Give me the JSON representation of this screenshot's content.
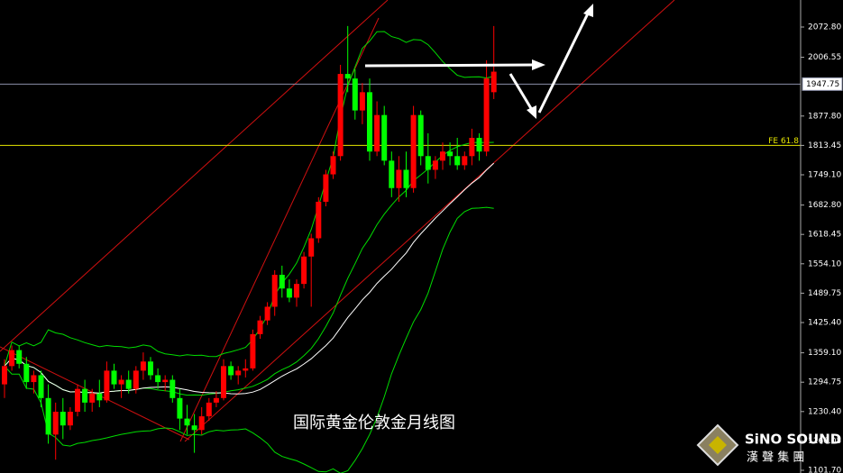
{
  "chart_data": {
    "type": "candlestick",
    "title": "国际黄金伦敦金月线图",
    "up_color": "#ff0000",
    "down_color": "#00ff00",
    "ylim": [
      1095.8,
      2132.0
    ],
    "yticks": [
      {
        "value": 2072.8,
        "label": "2072.80"
      },
      {
        "value": 2006.55,
        "label": "2006.55"
      },
      {
        "value": 1877.8,
        "label": "1877.80"
      },
      {
        "value": 1813.45,
        "label": "1813.45"
      },
      {
        "value": 1749.1,
        "label": "1749.10"
      },
      {
        "value": 1682.8,
        "label": "1682.80"
      },
      {
        "value": 1618.45,
        "label": "1618.45"
      },
      {
        "value": 1554.1,
        "label": "1554.10"
      },
      {
        "value": 1489.75,
        "label": "1489.75"
      },
      {
        "value": 1425.4,
        "label": "1425.40"
      },
      {
        "value": 1359.1,
        "label": "1359.10"
      },
      {
        "value": 1294.75,
        "label": "1294.75"
      },
      {
        "value": 1230.4,
        "label": "1230.40"
      },
      {
        "value": 1166.05,
        "label": "1166.05"
      },
      {
        "value": 1101.7,
        "label": "1101.70"
      }
    ],
    "hlines": [
      {
        "value": 1947.75,
        "label": "1947.75",
        "color": "#8a8fa8"
      },
      {
        "value": 1813.6,
        "label": "FE 61.8",
        "color": "#e6e600"
      }
    ],
    "candles": [
      {
        "open": 1290,
        "high": 1345,
        "low": 1260,
        "close": 1330
      },
      {
        "open": 1330,
        "high": 1375,
        "low": 1320,
        "close": 1365
      },
      {
        "open": 1365,
        "high": 1375,
        "low": 1325,
        "close": 1335
      },
      {
        "open": 1335,
        "high": 1350,
        "low": 1280,
        "close": 1295
      },
      {
        "open": 1295,
        "high": 1320,
        "low": 1270,
        "close": 1310
      },
      {
        "open": 1310,
        "high": 1320,
        "low": 1240,
        "close": 1260
      },
      {
        "open": 1260,
        "high": 1290,
        "low": 1160,
        "close": 1180
      },
      {
        "open": 1180,
        "high": 1250,
        "low": 1125,
        "close": 1230
      },
      {
        "open": 1230,
        "high": 1260,
        "low": 1170,
        "close": 1200
      },
      {
        "open": 1200,
        "high": 1240,
        "low": 1190,
        "close": 1230
      },
      {
        "open": 1230,
        "high": 1290,
        "low": 1220,
        "close": 1280
      },
      {
        "open": 1280,
        "high": 1300,
        "low": 1230,
        "close": 1250
      },
      {
        "open": 1250,
        "high": 1280,
        "low": 1230,
        "close": 1270
      },
      {
        "open": 1270,
        "high": 1300,
        "low": 1240,
        "close": 1255
      },
      {
        "open": 1255,
        "high": 1340,
        "low": 1250,
        "close": 1320
      },
      {
        "open": 1320,
        "high": 1335,
        "low": 1280,
        "close": 1290
      },
      {
        "open": 1290,
        "high": 1310,
        "low": 1260,
        "close": 1300
      },
      {
        "open": 1300,
        "high": 1320,
        "low": 1270,
        "close": 1280
      },
      {
        "open": 1280,
        "high": 1330,
        "low": 1270,
        "close": 1320
      },
      {
        "open": 1320,
        "high": 1360,
        "low": 1300,
        "close": 1340
      },
      {
        "open": 1340,
        "high": 1350,
        "low": 1300,
        "close": 1310
      },
      {
        "open": 1310,
        "high": 1325,
        "low": 1280,
        "close": 1295
      },
      {
        "open": 1295,
        "high": 1310,
        "low": 1275,
        "close": 1300
      },
      {
        "open": 1300,
        "high": 1310,
        "low": 1250,
        "close": 1260
      },
      {
        "open": 1260,
        "high": 1280,
        "low": 1190,
        "close": 1215
      },
      {
        "open": 1215,
        "high": 1245,
        "low": 1180,
        "close": 1200
      },
      {
        "open": 1200,
        "high": 1225,
        "low": 1140,
        "close": 1190
      },
      {
        "open": 1190,
        "high": 1240,
        "low": 1180,
        "close": 1220
      },
      {
        "open": 1220,
        "high": 1260,
        "low": 1210,
        "close": 1250
      },
      {
        "open": 1250,
        "high": 1275,
        "low": 1240,
        "close": 1260
      },
      {
        "open": 1260,
        "high": 1345,
        "low": 1255,
        "close": 1330
      },
      {
        "open": 1330,
        "high": 1340,
        "low": 1300,
        "close": 1310
      },
      {
        "open": 1310,
        "high": 1330,
        "low": 1290,
        "close": 1320
      },
      {
        "open": 1320,
        "high": 1345,
        "low": 1305,
        "close": 1325
      },
      {
        "open": 1325,
        "high": 1410,
        "low": 1320,
        "close": 1400
      },
      {
        "open": 1400,
        "high": 1440,
        "low": 1390,
        "close": 1430
      },
      {
        "open": 1430,
        "high": 1470,
        "low": 1420,
        "close": 1460
      },
      {
        "open": 1460,
        "high": 1540,
        "low": 1440,
        "close": 1530
      },
      {
        "open": 1530,
        "high": 1550,
        "low": 1480,
        "close": 1500
      },
      {
        "open": 1500,
        "high": 1520,
        "low": 1470,
        "close": 1480
      },
      {
        "open": 1480,
        "high": 1520,
        "low": 1460,
        "close": 1510
      },
      {
        "open": 1510,
        "high": 1580,
        "low": 1500,
        "close": 1570
      },
      {
        "open": 1570,
        "high": 1620,
        "low": 1460,
        "close": 1610
      },
      {
        "open": 1610,
        "high": 1700,
        "low": 1600,
        "close": 1690
      },
      {
        "open": 1690,
        "high": 1760,
        "low": 1680,
        "close": 1750
      },
      {
        "open": 1750,
        "high": 1800,
        "low": 1740,
        "close": 1790
      },
      {
        "open": 1790,
        "high": 1990,
        "low": 1780,
        "close": 1970
      },
      {
        "open": 1970,
        "high": 2075,
        "low": 1930,
        "close": 1960
      },
      {
        "open": 1960,
        "high": 1980,
        "low": 1870,
        "close": 1890
      },
      {
        "open": 1890,
        "high": 1950,
        "low": 1860,
        "close": 1930
      },
      {
        "open": 1930,
        "high": 1960,
        "low": 1780,
        "close": 1800
      },
      {
        "open": 1800,
        "high": 1910,
        "low": 1790,
        "close": 1880
      },
      {
        "open": 1880,
        "high": 1900,
        "low": 1770,
        "close": 1780
      },
      {
        "open": 1780,
        "high": 1800,
        "low": 1700,
        "close": 1720
      },
      {
        "open": 1720,
        "high": 1790,
        "low": 1690,
        "close": 1760
      },
      {
        "open": 1760,
        "high": 1800,
        "low": 1700,
        "close": 1720
      },
      {
        "open": 1720,
        "high": 1900,
        "low": 1710,
        "close": 1880
      },
      {
        "open": 1880,
        "high": 1890,
        "low": 1770,
        "close": 1790
      },
      {
        "open": 1790,
        "high": 1840,
        "low": 1730,
        "close": 1760
      },
      {
        "open": 1760,
        "high": 1790,
        "low": 1740,
        "close": 1780
      },
      {
        "open": 1780,
        "high": 1820,
        "low": 1760,
        "close": 1800
      },
      {
        "open": 1800,
        "high": 1820,
        "low": 1770,
        "close": 1790
      },
      {
        "open": 1790,
        "high": 1830,
        "low": 1760,
        "close": 1770
      },
      {
        "open": 1770,
        "high": 1800,
        "low": 1760,
        "close": 1790
      },
      {
        "open": 1790,
        "high": 1850,
        "low": 1770,
        "close": 1830
      },
      {
        "open": 1830,
        "high": 1840,
        "low": 1780,
        "close": 1800
      },
      {
        "open": 1800,
        "high": 2000,
        "low": 1790,
        "close": 1960
      },
      {
        "open": 1930,
        "high": 2075,
        "low": 1915,
        "close": 1975
      }
    ],
    "logo": {
      "name": "SiNO SOUND",
      "subtitle": "漢 聲 集 團"
    }
  }
}
